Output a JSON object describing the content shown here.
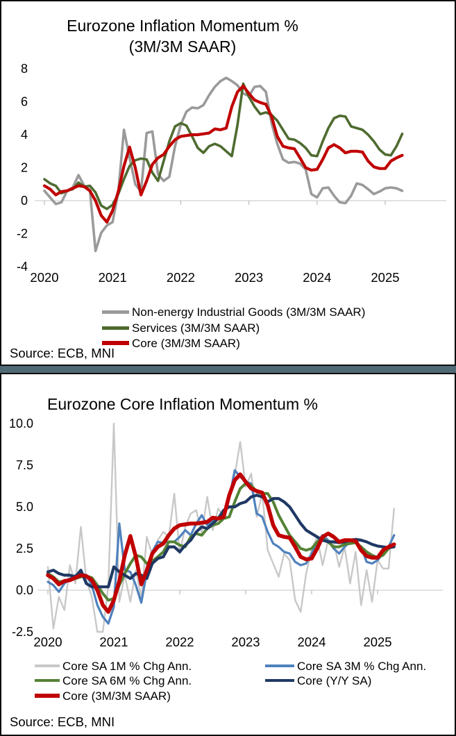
{
  "page": {
    "separator_color": "#4E6A74",
    "panel_background": "#ffffff",
    "border_color": "#0d0d0d",
    "zero_line_color": "#d9d9d9"
  },
  "chart_data": [
    {
      "type": "line",
      "title": "Eurozone Inflation Momentum %",
      "subtitle": "(3M/3M SAAR)",
      "source": "Source: ECB, MNI",
      "frequency": "monthly",
      "x_start": "2020-01",
      "x_end": "2025-04",
      "x_tick_labels": [
        "2020",
        "2021",
        "2022",
        "2023",
        "2024",
        "2025"
      ],
      "ylim": [
        -4,
        8
      ],
      "y_ticks": [
        {
          "v": 8,
          "label": "8"
        },
        {
          "v": 6,
          "label": "6"
        },
        {
          "v": 4,
          "label": "4"
        },
        {
          "v": 2,
          "label": "2"
        },
        {
          "v": 0,
          "label": "0"
        },
        {
          "v": -2,
          "label": "-2"
        },
        {
          "v": -4,
          "label": "-4"
        }
      ],
      "grid": "zero line only",
      "legend_position": "bottom",
      "series": [
        {
          "name": "Non-energy Industrial Goods (3M/3M SAAR)",
          "color": "#9A9A9A",
          "values": [
            0.6,
            0.2,
            -0.2,
            -0.1,
            0.6,
            0.8,
            1.55,
            0.9,
            0.65,
            -3.05,
            -1.95,
            -1.5,
            -1.3,
            0.5,
            4.3,
            2.6,
            1.0,
            0.55,
            4.1,
            4.2,
            1.6,
            1.2,
            1.45,
            3.3,
            4.6,
            5.4,
            5.65,
            5.6,
            5.8,
            6.4,
            6.9,
            7.25,
            7.45,
            7.25,
            7.0,
            6.5,
            6.35,
            6.9,
            6.95,
            6.6,
            4.7,
            3.45,
            2.5,
            2.3,
            2.35,
            2.25,
            1.9,
            0.4,
            0.2,
            0.75,
            0.8,
            0.3,
            -0.1,
            -0.15,
            0.3,
            1.05,
            0.95,
            0.7,
            0.4,
            0.55,
            0.75,
            0.8,
            0.75,
            0.6
          ]
        },
        {
          "name": "Services (3M/3M SAAR)",
          "color": "#4E6B2F",
          "values": [
            1.3,
            1.05,
            0.9,
            0.45,
            0.6,
            0.7,
            1.1,
            0.85,
            0.9,
            0.5,
            -0.3,
            -0.5,
            -0.25,
            0.4,
            1.3,
            2.1,
            2.45,
            2.55,
            2.5,
            1.7,
            1.2,
            2.4,
            3.6,
            4.5,
            4.7,
            4.55,
            3.9,
            3.2,
            2.9,
            3.3,
            3.45,
            3.3,
            3.0,
            2.7,
            4.6,
            7.1,
            6.3,
            5.7,
            5.25,
            5.35,
            5.2,
            4.85,
            4.3,
            3.75,
            3.7,
            3.5,
            3.2,
            2.75,
            2.7,
            3.6,
            4.4,
            5.0,
            5.15,
            5.1,
            4.5,
            4.4,
            4.3,
            4.0,
            3.6,
            3.1,
            2.8,
            2.75,
            3.3,
            4.05
          ]
        },
        {
          "name": "Core (3M/3M SAAR)",
          "color": "#C00000",
          "values": [
            0.9,
            0.7,
            0.35,
            0.55,
            0.6,
            0.75,
            0.9,
            0.85,
            0.6,
            0.0,
            -0.9,
            -1.3,
            -0.6,
            0.55,
            2.1,
            3.25,
            2.0,
            0.35,
            1.2,
            2.2,
            2.6,
            2.8,
            3.3,
            3.7,
            3.9,
            3.95,
            4.0,
            4.0,
            4.05,
            4.1,
            4.35,
            4.3,
            4.4,
            5.7,
            6.6,
            6.95,
            6.5,
            6.1,
            5.95,
            5.85,
            5.1,
            3.9,
            3.3,
            3.2,
            3.15,
            2.6,
            2.0,
            1.85,
            1.9,
            2.5,
            3.2,
            3.4,
            3.2,
            2.9,
            3.0,
            3.0,
            2.95,
            2.4,
            2.05,
            1.95,
            1.95,
            2.4,
            2.6,
            2.75
          ]
        }
      ]
    },
    {
      "type": "line",
      "title": "Eurozone Core Inflation Momentum %",
      "subtitle": "",
      "source": "Source: ECB, MNI",
      "frequency": "monthly",
      "x_start": "2020-01",
      "x_end": "2025-04",
      "x_tick_labels": [
        "2020",
        "2021",
        "2022",
        "2023",
        "2024",
        "2025"
      ],
      "ylim": [
        -2.5,
        10
      ],
      "y_ticks": [
        {
          "v": 10,
          "label": "10.0"
        },
        {
          "v": 7.5,
          "label": "7.5"
        },
        {
          "v": 5,
          "label": "5.0"
        },
        {
          "v": 2.5,
          "label": "2.5"
        },
        {
          "v": 0,
          "label": "0.0"
        },
        {
          "v": -2.5,
          "label": "-2.5"
        }
      ],
      "grid": "zero line only",
      "legend_position": "bottom-two-columns",
      "series": [
        {
          "name": "Core SA 1M % Chg Ann.",
          "color": "#C8C8C8",
          "values": [
            1.4,
            -2.3,
            -0.4,
            -1.2,
            1.5,
            0.4,
            3.8,
            0.6,
            -0.4,
            -2.5,
            -2.5,
            0.3,
            10.0,
            -0.7,
            0.9,
            -0.7,
            1.2,
            -0.5,
            3.2,
            2.1,
            3.0,
            3.5,
            3.2,
            5.8,
            2.2,
            3.8,
            4.6,
            4.8,
            3.4,
            5.6,
            3.6,
            4.9,
            4.4,
            5.5,
            6.9,
            8.9,
            6.2,
            7.0,
            4.4,
            5.8,
            2.4,
            1.6,
            0.8,
            2.2,
            1.8,
            -0.6,
            -1.3,
            1.0,
            2.4,
            3.2,
            1.5,
            3.0,
            2.9,
            1.4,
            2.6,
            0.4,
            2.3,
            -0.9,
            1.2,
            -0.7,
            1.8,
            1.3,
            1.3,
            4.9
          ]
        },
        {
          "name": "Core SA 3M % Chg Ann.",
          "color": "#4F81BD",
          "values": [
            0.5,
            0.3,
            -0.1,
            0.4,
            0.7,
            0.9,
            1.0,
            0.9,
            0.3,
            -0.9,
            -1.6,
            -2.0,
            -1.0,
            4.0,
            1.2,
            1.1,
            0.3,
            -0.75,
            1.1,
            2.3,
            2.9,
            2.85,
            2.9,
            2.9,
            3.2,
            3.6,
            3.3,
            4.0,
            4.5,
            3.9,
            4.2,
            4.3,
            4.5,
            5.5,
            7.2,
            6.8,
            6.5,
            6.4,
            4.6,
            4.4,
            3.5,
            2.8,
            2.6,
            2.3,
            2.2,
            1.7,
            1.5,
            1.6,
            2.2,
            2.9,
            3.3,
            3.0,
            2.5,
            2.2,
            2.6,
            2.9,
            2.9,
            2.6,
            1.7,
            1.6,
            1.8,
            2.2,
            2.6,
            3.3
          ]
        },
        {
          "name": "Core SA 6M % Chg Ann.",
          "color": "#548235",
          "values": [
            1.0,
            0.8,
            0.5,
            0.55,
            0.6,
            0.7,
            0.8,
            0.85,
            0.75,
            0.3,
            -0.2,
            -0.6,
            -0.5,
            0.3,
            1.0,
            1.6,
            2.1,
            2.0,
            1.6,
            1.75,
            2.0,
            2.3,
            2.9,
            2.9,
            2.7,
            2.6,
            3.2,
            3.4,
            3.3,
            3.7,
            3.9,
            4.0,
            4.3,
            4.4,
            5.3,
            6.1,
            6.4,
            6.3,
            5.9,
            5.8,
            5.8,
            5.3,
            4.5,
            3.9,
            3.3,
            2.9,
            2.5,
            2.4,
            2.5,
            2.9,
            3.1,
            2.9,
            2.6,
            2.6,
            2.75,
            2.8,
            2.85,
            2.6,
            2.3,
            2.1,
            1.95,
            2.1,
            2.5,
            2.75
          ]
        },
        {
          "name": "Core (Y/Y SA)",
          "color": "#1F3864",
          "values": [
            1.1,
            1.2,
            1.0,
            0.9,
            0.9,
            0.8,
            1.2,
            0.4,
            0.2,
            0.2,
            0.2,
            0.2,
            1.4,
            1.1,
            0.9,
            0.7,
            1.0,
            0.9,
            0.7,
            1.6,
            1.9,
            2.0,
            2.6,
            2.6,
            2.3,
            2.7,
            3.0,
            3.5,
            3.8,
            3.7,
            4.0,
            4.3,
            4.8,
            5.0,
            5.0,
            5.2,
            5.3,
            5.6,
            5.7,
            5.6,
            5.3,
            5.5,
            5.5,
            5.3,
            5.0,
            4.5,
            4.0,
            3.6,
            3.4,
            3.2,
            3.0,
            2.9,
            2.9,
            2.85,
            2.9,
            3.0,
            3.05,
            3.0,
            2.9,
            2.75,
            2.65,
            2.6,
            2.55,
            2.6
          ]
        },
        {
          "name": "Core (3M/3M SAAR)",
          "color": "#C00000",
          "values": [
            0.9,
            0.7,
            0.35,
            0.55,
            0.6,
            0.75,
            0.9,
            0.85,
            0.6,
            0.0,
            -0.9,
            -1.3,
            -0.6,
            0.55,
            2.1,
            3.25,
            2.0,
            0.35,
            1.2,
            2.2,
            2.6,
            2.8,
            3.3,
            3.7,
            3.9,
            3.95,
            4.0,
            4.0,
            4.05,
            4.1,
            4.35,
            4.3,
            4.4,
            5.7,
            6.6,
            6.95,
            6.5,
            6.1,
            5.95,
            5.85,
            5.1,
            3.9,
            3.3,
            3.2,
            3.15,
            2.6,
            2.0,
            1.85,
            1.9,
            2.5,
            3.2,
            3.4,
            3.2,
            2.9,
            3.0,
            3.0,
            2.95,
            2.4,
            2.05,
            1.95,
            1.95,
            2.4,
            2.6,
            2.75
          ]
        }
      ]
    }
  ]
}
